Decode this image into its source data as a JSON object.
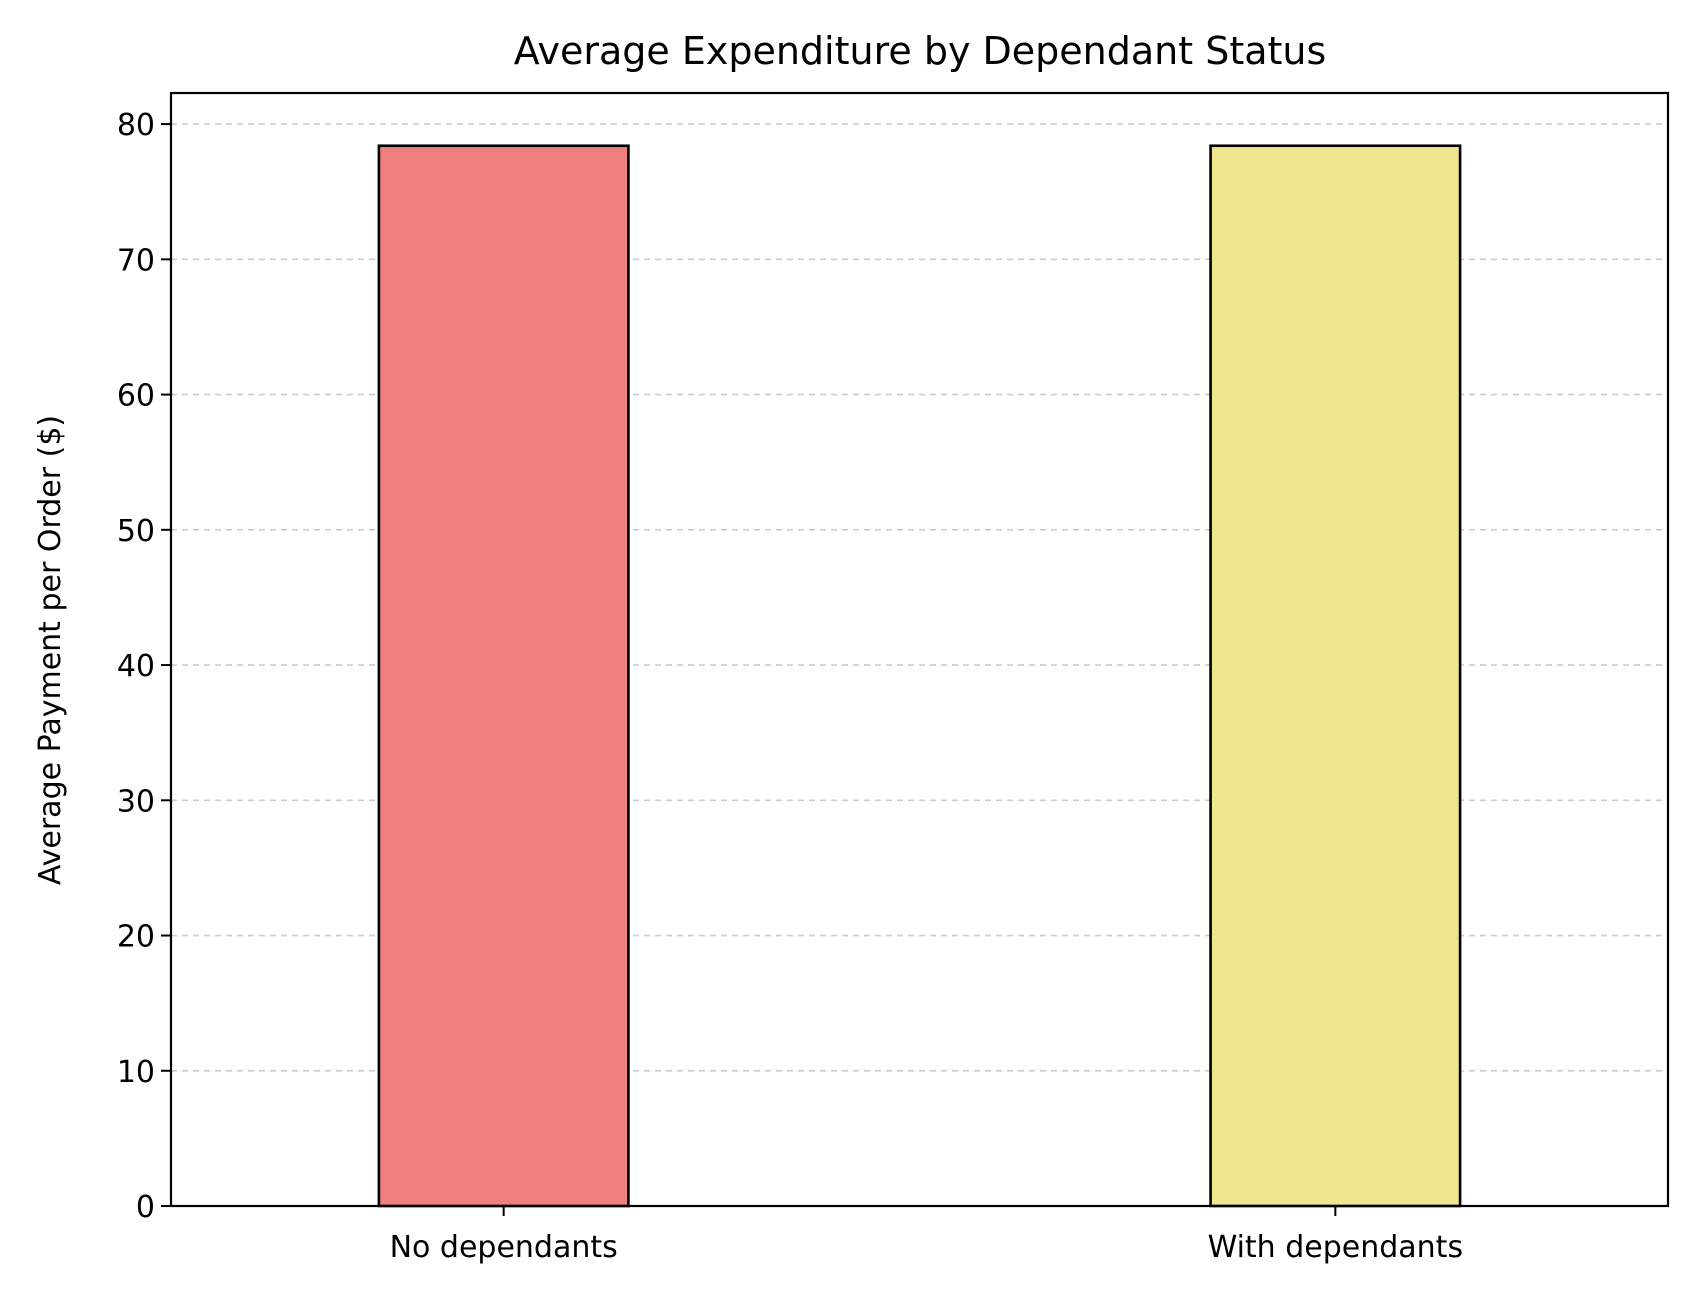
{
  "chart_data": {
    "type": "bar",
    "title": "Average Expenditure by Dependant Status",
    "xlabel": "",
    "ylabel": "Average Payment per Order ($)",
    "categories": [
      "No dependants",
      "With dependants"
    ],
    "values": [
      78.4,
      78.4
    ],
    "colors": [
      "#f08080",
      "#f0e68c"
    ],
    "edge_color": "#000000",
    "ylim": [
      0,
      82.3
    ],
    "yticks": [
      0,
      10,
      20,
      30,
      40,
      50,
      60,
      70,
      80
    ],
    "ytick_labels": [
      "0",
      "10",
      "20",
      "30",
      "40",
      "50",
      "60",
      "70",
      "80"
    ],
    "grid": {
      "axis": "y",
      "style": "dashed",
      "color": "#cccccc"
    },
    "legend": "none"
  }
}
